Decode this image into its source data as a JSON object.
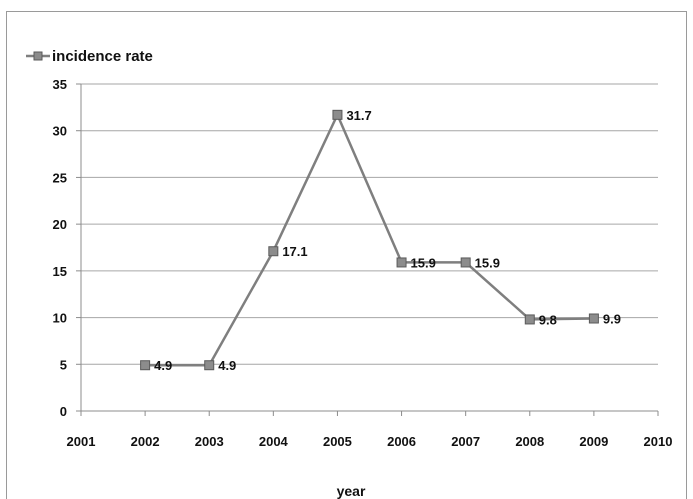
{
  "chart_data": {
    "type": "line",
    "title": "",
    "xlabel": "year",
    "ylabel": "",
    "x": [
      2002,
      2003,
      2004,
      2005,
      2006,
      2007,
      2008,
      2009
    ],
    "xlim": [
      2001,
      2010
    ],
    "ylim": [
      0,
      35
    ],
    "x_ticks": [
      "2001",
      "2002",
      "2003",
      "2004",
      "2005",
      "2006",
      "2007",
      "2008",
      "2009",
      "2010"
    ],
    "y_ticks": [
      "0",
      "5",
      "10",
      "15",
      "20",
      "25",
      "30",
      "35"
    ],
    "grid": "horizontal",
    "legend_position": "top-left",
    "series": [
      {
        "name": "incidence rate",
        "values": [
          4.9,
          4.9,
          17.1,
          31.7,
          15.9,
          15.9,
          9.8,
          9.9
        ],
        "labels": [
          "4.9",
          "4.9",
          "17.1",
          "31.7",
          "15.9",
          "15.9",
          "9.8",
          "9.9"
        ],
        "color": "#7f7f7f",
        "marker_color": "#8c8c8c"
      }
    ]
  }
}
